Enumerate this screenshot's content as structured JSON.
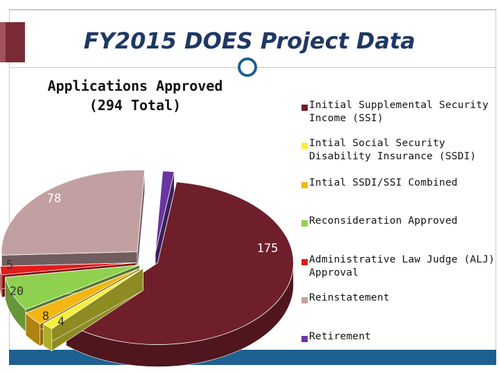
{
  "slide": {
    "title": "FY2015 DOES Project Data"
  },
  "chart_data": {
    "type": "pie",
    "style": "3d-exploded",
    "title_lines": [
      "Applications Approved",
      "(294 Total)"
    ],
    "series": [
      {
        "name": "",
        "slices": [
          {
            "label": "Initial  Supplemental Security Income (SSI)",
            "value": 175,
            "color": "#6e1f2a",
            "data_label": "175"
          },
          {
            "label": "Intial Social Security Disability Insurance (SSDI)",
            "value": 4,
            "color": "#f5ef3c",
            "data_label": "4"
          },
          {
            "label": "Intial SSDI/SSI Combined",
            "value": 8,
            "color": "#f2b616",
            "data_label": "8"
          },
          {
            "label": "Reconsideration Approved",
            "value": 20,
            "color": "#8fd14f",
            "data_label": "20"
          },
          {
            "label": "Administrative Law Judge (ALJ) Approval",
            "value": 5,
            "color": "#e31b1b",
            "data_label": "5"
          },
          {
            "label": "Reinstatement",
            "value": 78,
            "color": "#c2a0a2",
            "data_label": "78"
          },
          {
            "label": "Retirement",
            "value": 4,
            "color": "#6a35a1",
            "data_label": ""
          }
        ]
      }
    ],
    "legend_position": "right"
  }
}
